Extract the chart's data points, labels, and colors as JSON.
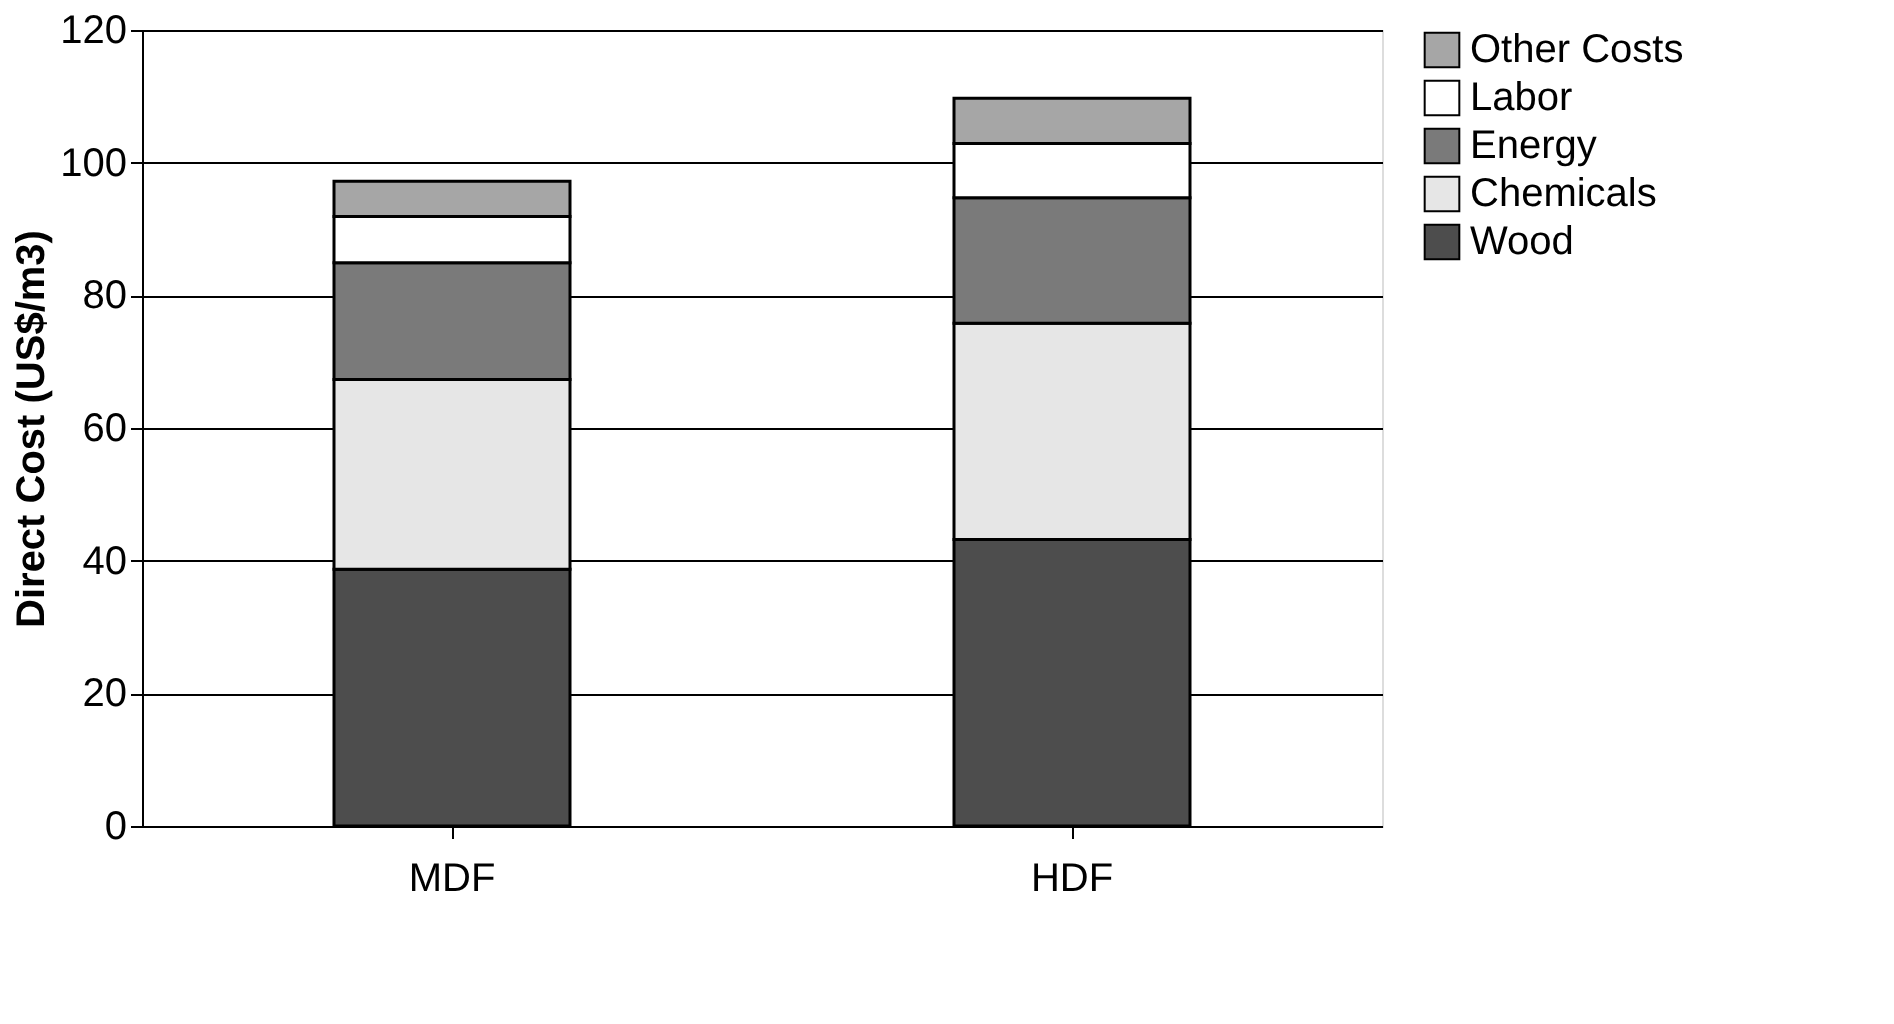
{
  "chart_data": {
    "type": "bar",
    "stacked": true,
    "ylabel": "Direct Cost (US$/m3)",
    "categories": [
      "MDF",
      "HDF"
    ],
    "series": [
      {
        "name": "Wood",
        "color": "#4d4d4d",
        "values": [
          38.7,
          43.2
        ]
      },
      {
        "name": "Chemicals",
        "color": "#e6e6e6",
        "values": [
          28.6,
          32.6
        ]
      },
      {
        "name": "Energy",
        "color": "#7a7a7a",
        "values": [
          17.6,
          18.9
        ]
      },
      {
        "name": "Labor",
        "color": "#ffffff",
        "values": [
          7.0,
          8.2
        ]
      },
      {
        "name": "Other Costs",
        "color": "#a6a6a6",
        "values": [
          5.3,
          6.8
        ]
      }
    ],
    "ylim": [
      0,
      120
    ],
    "yticks": [
      0,
      20,
      40,
      60,
      80,
      100,
      120
    ],
    "grid": "y",
    "legend": "right"
  }
}
